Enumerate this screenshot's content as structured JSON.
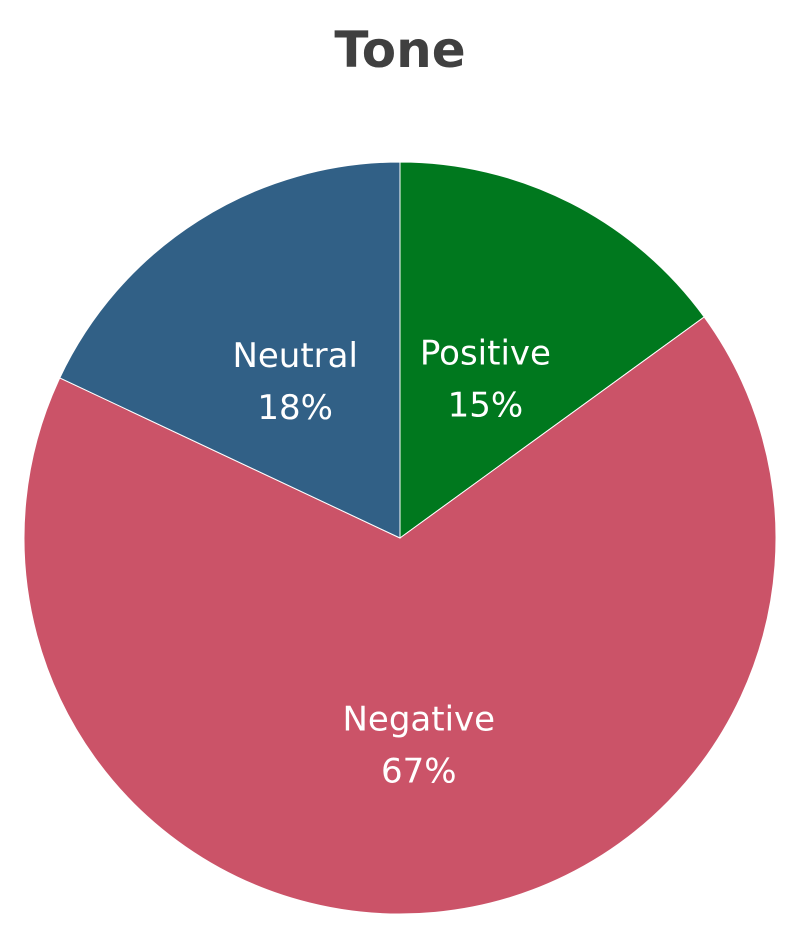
{
  "chart_data": {
    "type": "pie",
    "title": "Tone",
    "slices": [
      {
        "label": "Positive",
        "value": 15,
        "display": "15%",
        "color": "#00781e"
      },
      {
        "label": "Negative",
        "value": 67,
        "display": "67%",
        "color": "#cb5368"
      },
      {
        "label": "Neutral",
        "value": 18,
        "display": "18%",
        "color": "#316086"
      }
    ],
    "start_angle": "12 o'clock",
    "direction": "clockwise",
    "legend": "none"
  }
}
